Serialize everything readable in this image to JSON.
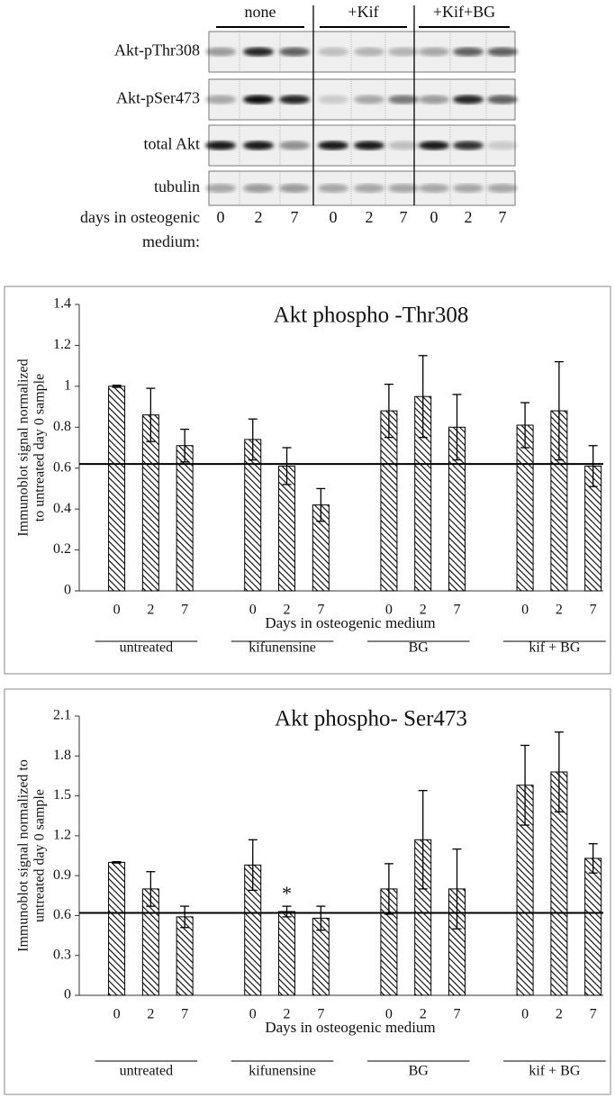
{
  "blot": {
    "conditions": [
      "none",
      "+Kif",
      "+Kif+BG"
    ],
    "rows": [
      "Akt-pThr308",
      "Akt-pSer473",
      "total Akt",
      "tubulin"
    ],
    "days_label": [
      "days in osteogenic",
      "medium:"
    ],
    "lanes": [
      "0",
      "2",
      "7",
      "0",
      "2",
      "7",
      "0",
      "2",
      "7"
    ]
  },
  "chart_data": [
    {
      "type": "bar",
      "title": "Akt phospho -Thr308",
      "ylabel": [
        "Immunoblot signal normalized",
        "to untreated day 0 sample"
      ],
      "xlabel": "Days in osteogenic medium",
      "groups": [
        "untreated",
        "kifunensine",
        "BG",
        "kif + BG"
      ],
      "categories": [
        "0",
        "2",
        "7",
        "0",
        "2",
        "7",
        "0",
        "2",
        "7",
        "0",
        "2",
        "7"
      ],
      "values": [
        1.0,
        0.86,
        0.71,
        0.74,
        0.61,
        0.42,
        0.88,
        0.95,
        0.8,
        0.81,
        0.88,
        0.61
      ],
      "errors": [
        0.005,
        0.13,
        0.08,
        0.1,
        0.09,
        0.08,
        0.13,
        0.2,
        0.16,
        0.11,
        0.24,
        0.1
      ],
      "reference_line": 0.62,
      "color": "#000000",
      "ylim": [
        0,
        1.4
      ],
      "yticks": [
        0,
        0.2,
        0.4,
        0.6,
        0.8,
        1,
        1.2,
        1.4
      ]
    },
    {
      "type": "bar",
      "title": "Akt phospho- Ser473",
      "ylabel": [
        "Immunoblot signal normalized to",
        "untreated day 0 sample"
      ],
      "xlabel": "Days in osteogenic medium",
      "groups": [
        "untreated",
        "kifunensine",
        "BG",
        "kif + BG"
      ],
      "categories": [
        "0",
        "2",
        "7",
        "0",
        "2",
        "7",
        "0",
        "2",
        "7",
        "0",
        "2",
        "7"
      ],
      "values": [
        1.0,
        0.8,
        0.59,
        0.98,
        0.63,
        0.58,
        0.8,
        1.17,
        0.8,
        1.58,
        1.68,
        1.03
      ],
      "errors": [
        0.005,
        0.13,
        0.08,
        0.19,
        0.04,
        0.09,
        0.19,
        0.37,
        0.3,
        0.3,
        0.3,
        0.11
      ],
      "reference_line": 0.62,
      "color": "#000000",
      "annotations": [
        {
          "text": "*",
          "group": "kifunensine",
          "category": "2"
        }
      ],
      "ylim": [
        0,
        2.1
      ],
      "yticks": [
        0,
        0.3,
        0.6,
        0.9,
        1.2,
        1.5,
        1.8,
        2.1
      ]
    }
  ]
}
